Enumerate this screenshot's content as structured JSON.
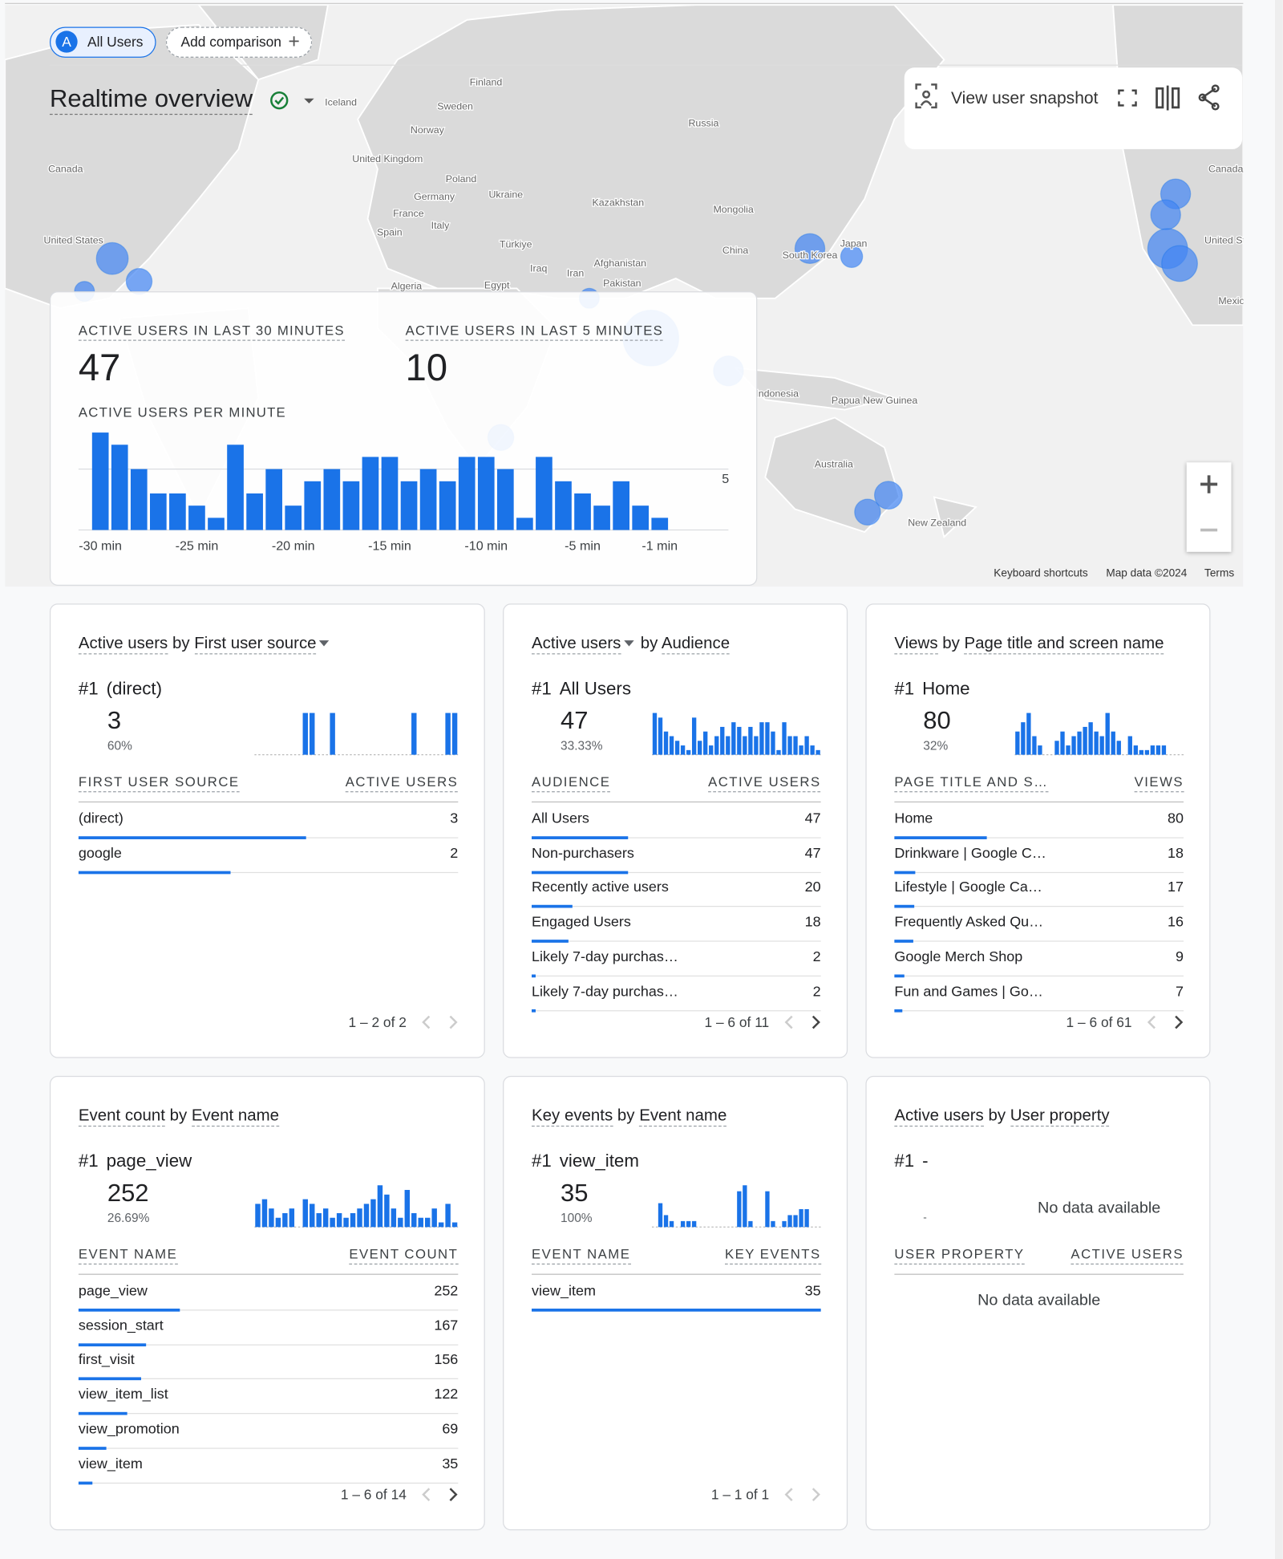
{
  "header": {
    "avatar": "A",
    "chips": [
      "All Users",
      "Add comparison"
    ],
    "title": "Realtime overview",
    "snapshot": "View user snapshot"
  },
  "map": {
    "labels": [
      "Iceland",
      "Finland",
      "Sweden",
      "Norway",
      "Russia",
      "United Kingdom",
      "Poland",
      "Germany",
      "Ukraine",
      "Kazakhstan",
      "Mongolia",
      "France",
      "Italy",
      "Spain",
      "Türkiye",
      "China",
      "South Korea",
      "Japan",
      "Iraq",
      "Iran",
      "Afghanistan",
      "Pakistan",
      "Algeria",
      "Egypt",
      "Canada",
      "United States",
      "Canada",
      "United States",
      "Mexico",
      "Indonesia",
      "Papua New Guinea",
      "Australia",
      "New Zealand"
    ],
    "attribution": [
      "Keyboard shortcuts",
      "Map data ©2024",
      "Terms"
    ]
  },
  "realtime": {
    "metrics": [
      {
        "label": "ACTIVE USERS IN LAST 30 MINUTES",
        "value": 47
      },
      {
        "label": "ACTIVE USERS IN LAST 5 MINUTES",
        "value": 10
      }
    ]
  },
  "chart_data": {
    "type": "bar",
    "title": "ACTIVE USERS PER MINUTE",
    "categories": [
      "-30 min",
      null,
      null,
      null,
      null,
      "-25 min",
      null,
      null,
      null,
      null,
      "-20 min",
      null,
      null,
      null,
      null,
      "-15 min",
      null,
      null,
      null,
      null,
      "-10 min",
      null,
      null,
      null,
      null,
      "-5 min",
      null,
      null,
      null,
      "-1 min"
    ],
    "values": [
      8,
      7,
      5,
      3,
      3,
      2,
      1,
      7,
      3,
      5,
      2,
      4,
      5,
      4,
      6,
      6,
      4,
      5,
      4,
      6,
      6,
      5,
      1,
      6,
      4,
      3,
      2,
      4,
      2,
      1
    ],
    "color": "#1a73e8",
    "ylim": [
      0,
      8
    ],
    "yticks": [
      5
    ],
    "grid": true
  },
  "cards": [
    {
      "title": {
        "metric": "Active users",
        "joiner": "by",
        "dimension": "First user source"
      },
      "dropdown_on": "dimension",
      "top": {
        "rank": "#1",
        "name": "(direct)",
        "value": 3,
        "percent": {
          "value": 60,
          "label": "60%"
        }
      },
      "sparkline": [
        0,
        0,
        0,
        0,
        0,
        0,
        0,
        1,
        1,
        0,
        0,
        1,
        0,
        0,
        0,
        0,
        0,
        0,
        0,
        0,
        0,
        0,
        0,
        1,
        0,
        0,
        0,
        0,
        1,
        1
      ],
      "columns": [
        "FIRST USER SOURCE",
        "ACTIVE USERS"
      ],
      "rows": [
        {
          "name": "(direct)",
          "value": 3
        },
        {
          "name": "google",
          "value": 2
        }
      ],
      "pagination": "1 – 2 of 2",
      "prev_enabled": false,
      "next_enabled": false
    },
    {
      "title": {
        "metric": "Active users",
        "joiner": "by",
        "dimension": "Audience"
      },
      "dropdown_on": "metric",
      "top": {
        "rank": "#1",
        "name": "All Users",
        "value": 47,
        "percent": {
          "value": 33.33,
          "label": "33.33%"
        }
      },
      "sparkline": [
        9,
        8,
        5,
        4,
        3,
        2,
        1,
        8,
        3,
        5,
        2,
        4,
        6,
        4,
        7,
        6,
        4,
        6,
        4,
        7,
        7,
        5,
        1,
        7,
        4,
        4,
        2,
        4,
        2,
        1
      ],
      "columns": [
        "AUDIENCE",
        "ACTIVE USERS"
      ],
      "rows": [
        {
          "name": "All Users",
          "value": 47
        },
        {
          "name": "Non-purchasers",
          "value": 47
        },
        {
          "name": "Recently active users",
          "value": 20
        },
        {
          "name": "Engaged Users",
          "value": 18
        },
        {
          "name": "Likely 7-day purchas…",
          "value": 2
        },
        {
          "name": "Likely 7-day purchas…",
          "value": 2
        }
      ],
      "pagination": "1 – 6 of 11",
      "prev_enabled": false,
      "next_enabled": true
    },
    {
      "title": {
        "metric": "Views",
        "joiner": "by",
        "dimension": "Page title and screen name"
      },
      "dropdown_on": "none",
      "top": {
        "rank": "#1",
        "name": "Home",
        "value": 80,
        "percent": {
          "value": 32,
          "label": "32%"
        }
      },
      "sparkline": [
        5,
        7,
        9,
        4,
        2,
        0,
        0,
        3,
        5,
        2,
        4,
        5,
        6,
        7,
        5,
        4,
        9,
        5,
        3,
        0,
        4,
        2,
        1,
        1,
        2,
        2,
        2,
        0,
        0,
        0
      ],
      "columns": [
        "PAGE TITLE AND S…",
        "VIEWS"
      ],
      "rows": [
        {
          "name": "Home",
          "value": 80
        },
        {
          "name": "Drinkware | Google C…",
          "value": 18
        },
        {
          "name": "Lifestyle | Google Ca…",
          "value": 17
        },
        {
          "name": "Frequently Asked Qu…",
          "value": 16
        },
        {
          "name": "Google Merch Shop",
          "value": 9
        },
        {
          "name": "Fun and Games | Go…",
          "value": 7
        }
      ],
      "pagination": "1 – 6 of 61",
      "prev_enabled": false,
      "next_enabled": true
    },
    {
      "title": {
        "metric": "Event count",
        "joiner": "by",
        "dimension": "Event name"
      },
      "dropdown_on": "none",
      "top": {
        "rank": "#1",
        "name": "page_view",
        "value": 252,
        "percent": {
          "value": 26.69,
          "label": "26.69%"
        }
      },
      "sparkline": [
        5,
        6,
        4,
        2,
        3,
        4,
        0,
        6,
        5,
        3,
        4,
        2,
        3,
        2,
        3,
        4,
        5,
        6,
        9,
        7,
        4,
        2,
        8,
        3,
        2,
        2,
        4,
        1,
        5,
        1
      ],
      "columns": [
        "EVENT NAME",
        "EVENT COUNT"
      ],
      "rows": [
        {
          "name": "page_view",
          "value": 252
        },
        {
          "name": "session_start",
          "value": 167
        },
        {
          "name": "first_visit",
          "value": 156
        },
        {
          "name": "view_item_list",
          "value": 122
        },
        {
          "name": "view_promotion",
          "value": 69
        },
        {
          "name": "view_item",
          "value": 35
        }
      ],
      "pagination": "1 – 6 of 14",
      "prev_enabled": false,
      "next_enabled": true
    },
    {
      "title": {
        "metric": "Key events",
        "joiner": "by",
        "dimension": "Event name"
      },
      "dropdown_on": "none",
      "top": {
        "rank": "#1",
        "name": "view_item",
        "value": 35,
        "percent": {
          "value": 100,
          "label": "100%"
        }
      },
      "sparkline": [
        0,
        4,
        2,
        1,
        0,
        1,
        1,
        1,
        0,
        0,
        0,
        0,
        0,
        0,
        0,
        6,
        7,
        1,
        0,
        0,
        6,
        1,
        0,
        1,
        2,
        2,
        3,
        3,
        0,
        0
      ],
      "columns": [
        "EVENT NAME",
        "KEY EVENTS"
      ],
      "rows": [
        {
          "name": "view_item",
          "value": 35
        }
      ],
      "pagination": "1 – 1 of 1",
      "prev_enabled": false,
      "next_enabled": false
    },
    {
      "title": {
        "metric": "Active users",
        "joiner": "by",
        "dimension": "User property"
      },
      "dropdown_on": "none",
      "top": {
        "rank": "#1",
        "name": "-",
        "note": "-"
      },
      "empty_message": "No data available",
      "columns": [
        "USER PROPERTY",
        "ACTIVE USERS"
      ],
      "rows": [],
      "rows_empty_message": "No data available"
    }
  ]
}
